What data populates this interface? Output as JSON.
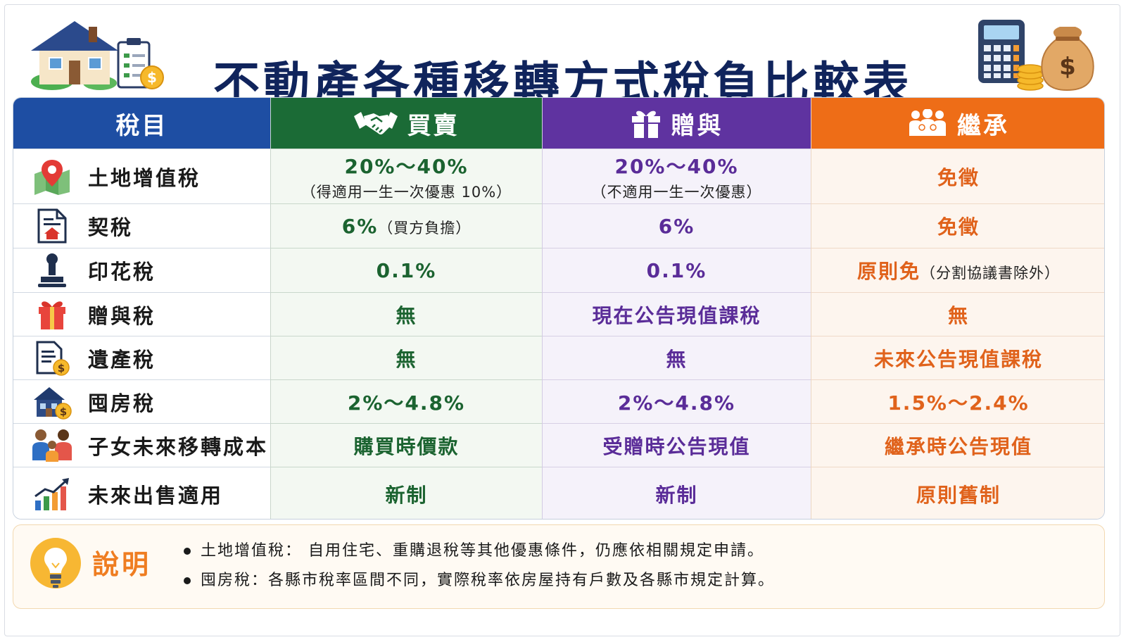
{
  "title": "不動產各種移轉方式稅負比較表",
  "table": {
    "headers": {
      "item": "稅目",
      "sale": "買賣",
      "gift": "贈與",
      "inherit": "繼承"
    },
    "rows": [
      {
        "icon": "map-pin-icon",
        "label": "土地增值稅",
        "sale": "20%～40%",
        "sale_note": "（得適用一生一次優惠 10%）",
        "gift": "20%～40%",
        "gift_note": "（不適用一生一次優惠）",
        "inherit": "免徵"
      },
      {
        "icon": "deed-document-icon",
        "label": "契稅",
        "sale": "6%",
        "sale_note": "（買方負擔）",
        "gift": "6%",
        "inherit": "免徵"
      },
      {
        "icon": "stamp-icon",
        "label": "印花稅",
        "sale": "0.1%",
        "gift": "0.1%",
        "inherit": "原則免",
        "inherit_note": "（分割協議書除外）"
      },
      {
        "icon": "gift-icon",
        "label": "贈與稅",
        "sale": "無",
        "gift": "現在公告現值課稅",
        "inherit": "無"
      },
      {
        "icon": "estate-document-icon",
        "label": "遺產稅",
        "sale": "無",
        "gift": "無",
        "inherit": "未來公告現值課稅"
      },
      {
        "icon": "house-tax-icon",
        "label": "囤房稅",
        "sale": "2%～4.8%",
        "gift": "2%～4.8%",
        "inherit": "1.5%～2.4%"
      },
      {
        "icon": "family-icon",
        "label": "子女未來移轉成本",
        "sale": "購買時價款",
        "gift": "受贈時公告現值",
        "inherit": "繼承時公告現值"
      },
      {
        "icon": "growth-chart-icon",
        "label": "未來出售適用",
        "sale": "新制",
        "gift": "新制",
        "inherit": "原則舊制"
      }
    ]
  },
  "note": {
    "title": "說明",
    "items": [
      "土地增值稅： 自用住宅、重購退稅等其他優惠條件，仍應依相關規定申請。",
      "囤房稅：各縣市稅率區間不同，實際稅率依房屋持有戶數及各縣市規定計算。"
    ]
  },
  "colors": {
    "title": "#10245c",
    "item_header": "#1e4ea3",
    "sale": "#1b6b36",
    "gift": "#5f33a0",
    "inherit": "#ee6d17",
    "note_title": "#ef7d21"
  }
}
